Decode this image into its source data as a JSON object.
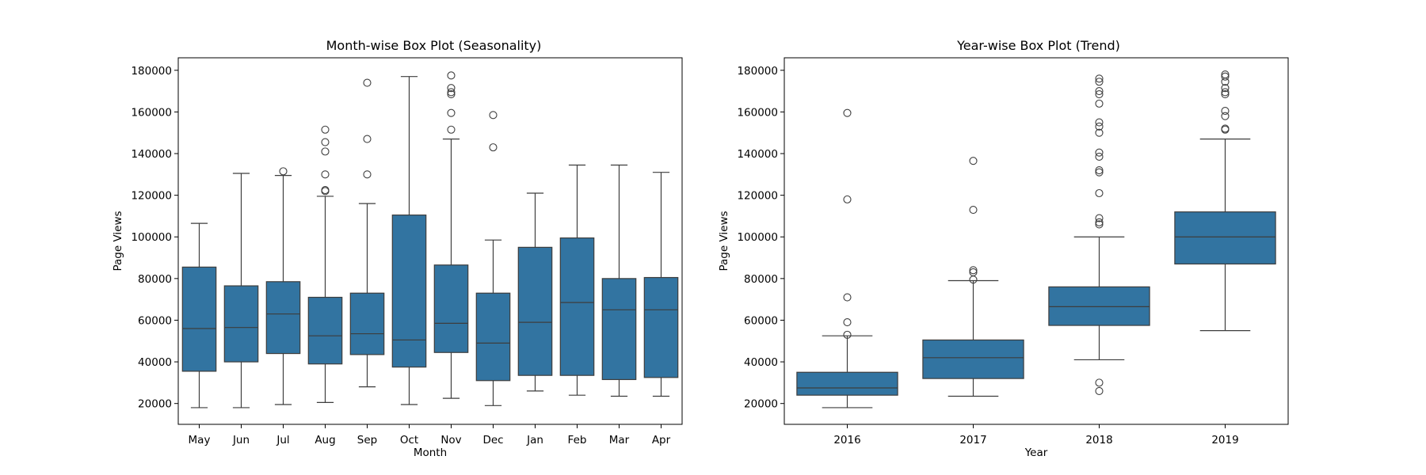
{
  "style": {
    "box_fill": "#3274a1",
    "line_color": "#3d3d3d",
    "background": "#ffffff"
  },
  "chart_data": [
    {
      "type": "box",
      "title": "Month-wise Box Plot (Seasonality)",
      "xlabel": "Month",
      "ylabel": "Page Views",
      "ylim": [
        10000,
        186000
      ],
      "yticks": [
        20000,
        40000,
        60000,
        80000,
        100000,
        120000,
        140000,
        160000,
        180000
      ],
      "ytick_labels": [
        "20000",
        "40000",
        "60000",
        "80000",
        "100000",
        "120000",
        "140000",
        "160000",
        "180000"
      ],
      "categories": [
        "May",
        "Jun",
        "Jul",
        "Aug",
        "Sep",
        "Oct",
        "Nov",
        "Dec",
        "Jan",
        "Feb",
        "Mar",
        "Apr"
      ],
      "boxes": [
        {
          "whislo": 18000,
          "q1": 35500,
          "med": 56000,
          "q3": 85500,
          "whishi": 106500,
          "fliers": []
        },
        {
          "whislo": 18000,
          "q1": 40000,
          "med": 56500,
          "q3": 76500,
          "whishi": 130500,
          "fliers": []
        },
        {
          "whislo": 19500,
          "q1": 44000,
          "med": 63000,
          "q3": 78500,
          "whishi": 129500,
          "fliers": [
            131500
          ]
        },
        {
          "whislo": 20500,
          "q1": 39000,
          "med": 52500,
          "q3": 71000,
          "whishi": 119500,
          "fliers": [
            122000,
            122500,
            130000,
            141000,
            145500,
            151500
          ]
        },
        {
          "whislo": 28000,
          "q1": 43500,
          "med": 53500,
          "q3": 73000,
          "whishi": 116000,
          "fliers": [
            130000,
            147000,
            174000
          ]
        },
        {
          "whislo": 19500,
          "q1": 37500,
          "med": 50500,
          "q3": 110500,
          "whishi": 177000,
          "fliers": []
        },
        {
          "whislo": 22500,
          "q1": 44500,
          "med": 58500,
          "q3": 86500,
          "whishi": 147000,
          "fliers": [
            151500,
            159500,
            168500,
            169500,
            171500,
            177500
          ]
        },
        {
          "whislo": 19000,
          "q1": 31000,
          "med": 49000,
          "q3": 73000,
          "whishi": 98500,
          "fliers": [
            143000,
            158500
          ]
        },
        {
          "whislo": 26000,
          "q1": 33500,
          "med": 59000,
          "q3": 95000,
          "whishi": 121000,
          "fliers": []
        },
        {
          "whislo": 24000,
          "q1": 33500,
          "med": 68500,
          "q3": 99500,
          "whishi": 134500,
          "fliers": []
        },
        {
          "whislo": 23500,
          "q1": 31500,
          "med": 65000,
          "q3": 80000,
          "whishi": 134500,
          "fliers": []
        },
        {
          "whislo": 23500,
          "q1": 32500,
          "med": 65000,
          "q3": 80500,
          "whishi": 131000,
          "fliers": []
        }
      ]
    },
    {
      "type": "box",
      "title": "Year-wise Box Plot (Trend)",
      "xlabel": "Year",
      "ylabel": "Page Views",
      "ylim": [
        10000,
        186000
      ],
      "yticks": [
        20000,
        40000,
        60000,
        80000,
        100000,
        120000,
        140000,
        160000,
        180000
      ],
      "ytick_labels": [
        "20000",
        "40000",
        "60000",
        "80000",
        "100000",
        "120000",
        "140000",
        "160000",
        "180000"
      ],
      "categories": [
        "2016",
        "2017",
        "2018",
        "2019"
      ],
      "boxes": [
        {
          "whislo": 18000,
          "q1": 24000,
          "med": 27500,
          "q3": 35000,
          "whishi": 52500,
          "fliers": [
            53000,
            59000,
            71000,
            118000,
            159500
          ]
        },
        {
          "whislo": 23500,
          "q1": 32000,
          "med": 42000,
          "q3": 50500,
          "whishi": 79000,
          "fliers": [
            79500,
            83000,
            84000,
            113000,
            136500
          ]
        },
        {
          "whislo": 41000,
          "q1": 57500,
          "med": 66500,
          "q3": 76000,
          "whishi": 100000,
          "fliers": [
            26000,
            30000,
            106000,
            107000,
            109000,
            121000,
            131000,
            132000,
            138500,
            140500,
            150000,
            153000,
            155000,
            164000,
            168500,
            170000,
            174500,
            176000
          ]
        },
        {
          "whislo": 55000,
          "q1": 87000,
          "med": 100000,
          "q3": 112000,
          "whishi": 147000,
          "fliers": [
            151500,
            152000,
            158000,
            160500,
            168500,
            169500,
            171500,
            174500,
            177000,
            178000
          ]
        }
      ]
    }
  ]
}
